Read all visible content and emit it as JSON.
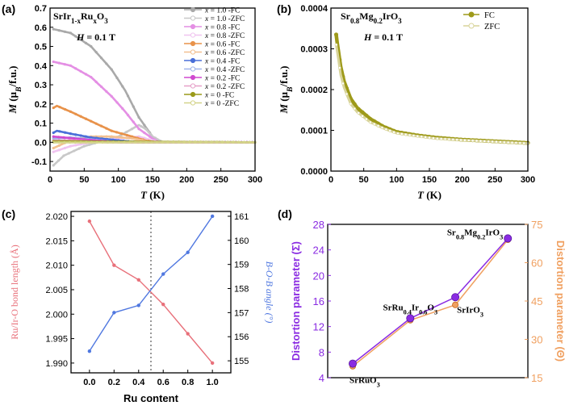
{
  "chart_data": [
    {
      "panel": "(a)",
      "type": "line",
      "title": "SrIr1-xRuxO3",
      "annotation": "H = 0.1 T",
      "xlabel": "T (K)",
      "ylabel": "M (μB/f.u.)",
      "xlim": [
        0,
        300
      ],
      "ylim": [
        -0.15,
        0.7
      ],
      "xticks": [
        "0",
        "50",
        "100",
        "150",
        "200",
        "250",
        "300"
      ],
      "yticks": [
        "-0.1",
        "0.0",
        "0.1",
        "0.2",
        "0.3",
        "0.4",
        "0.5",
        "0.6",
        "0.7"
      ],
      "legend_position": "top-right",
      "legend": [
        "x = 1.0 -FC",
        "x = 1.0 -ZFC",
        "x = 0.8 -FC",
        "x = 0.8 -ZFC",
        "x = 0.6 -FC",
        "x = 0.6 -ZFC",
        "x = 0.4 -FC",
        "x = 0.4 -ZFC",
        "x = 0.2 -FC",
        "x = 0.2 -ZFC",
        "x = 0 -FC",
        "x = 0 -ZFC"
      ],
      "series": [
        {
          "name": "x = 1.0 -FC",
          "color": "#a9a9a9",
          "x": [
            5,
            30,
            60,
            90,
            110,
            130,
            150,
            165,
            300
          ],
          "y": [
            0.59,
            0.57,
            0.5,
            0.38,
            0.27,
            0.13,
            0.03,
            0.0,
            0.0
          ]
        },
        {
          "name": "x = 1.0 -ZFC",
          "color": "#c8c8c8",
          "x": [
            5,
            20,
            50,
            100,
            120,
            130,
            140,
            150,
            165,
            300
          ],
          "y": [
            -0.12,
            -0.07,
            -0.02,
            0.03,
            0.07,
            0.09,
            0.07,
            0.03,
            0.0,
            0.0
          ]
        },
        {
          "name": "x = 0.8 -FC",
          "color": "#e48fe4",
          "x": [
            5,
            30,
            60,
            90,
            110,
            130,
            150,
            160,
            300
          ],
          "y": [
            0.42,
            0.4,
            0.34,
            0.24,
            0.16,
            0.07,
            0.02,
            0.0,
            0.0
          ]
        },
        {
          "name": "x = 0.8 -ZFC",
          "color": "#f0c4f0",
          "x": [
            5,
            30,
            60,
            100,
            130,
            150,
            160,
            300
          ],
          "y": [
            -0.05,
            -0.02,
            0.0,
            0.02,
            0.03,
            0.01,
            0.0,
            0.0
          ]
        },
        {
          "name": "x = 0.6 -FC",
          "color": "#e8924a",
          "x": [
            5,
            10,
            30,
            60,
            90,
            120,
            140,
            155,
            300
          ],
          "y": [
            0.18,
            0.19,
            0.16,
            0.11,
            0.06,
            0.03,
            0.01,
            0.0,
            0.0
          ]
        },
        {
          "name": "x = 0.6 -ZFC",
          "color": "#f2c090",
          "x": [
            5,
            30,
            60,
            90,
            120,
            150,
            300
          ],
          "y": [
            -0.03,
            0.01,
            0.03,
            0.03,
            0.02,
            0.0,
            0.0
          ]
        },
        {
          "name": "x = 0.4 -FC",
          "color": "#4a6fd8",
          "x": [
            5,
            10,
            30,
            60,
            100,
            130,
            300
          ],
          "y": [
            0.05,
            0.06,
            0.045,
            0.025,
            0.01,
            0.0,
            0.0
          ]
        },
        {
          "name": "x = 0.4 -ZFC",
          "color": "#a0b4ea",
          "x": [
            5,
            30,
            60,
            100,
            300
          ],
          "y": [
            0.02,
            0.025,
            0.015,
            0.0,
            0.0
          ]
        },
        {
          "name": "x = 0.2 -FC",
          "color": "#d04ad0",
          "x": [
            5,
            20,
            50,
            100,
            300
          ],
          "y": [
            0.03,
            0.025,
            0.015,
            0.0,
            0.0
          ]
        },
        {
          "name": "x = 0.2 -ZFC",
          "color": "#e6a0c8",
          "x": [
            5,
            30,
            80,
            300
          ],
          "y": [
            0.01,
            0.01,
            0.0,
            0.0
          ]
        },
        {
          "name": "x = 0 -FC",
          "color": "#9a9a1a",
          "x": [
            5,
            300
          ],
          "y": [
            0.005,
            0.0
          ]
        },
        {
          "name": "x = 0 -ZFC",
          "color": "#d4d48a",
          "x": [
            5,
            300
          ],
          "y": [
            0.0,
            0.0
          ]
        }
      ]
    },
    {
      "panel": "(b)",
      "type": "line",
      "title": "Sr0.8Mg0.2IrO3",
      "annotation": "H = 0.1 T",
      "xlabel": "T (K)",
      "ylabel": "M (μB/f.u.)",
      "xlim": [
        0,
        300
      ],
      "ylim": [
        0,
        0.0004
      ],
      "xticks": [
        "0",
        "50",
        "100",
        "150",
        "200",
        "250",
        "300"
      ],
      "yticks": [
        "0.0000",
        "0.0001",
        "0.0002",
        "0.0003",
        "0.0004"
      ],
      "legend_position": "top-right",
      "legend": [
        "FC",
        "ZFC"
      ],
      "series": [
        {
          "name": "FC",
          "color": "#9e9a1a",
          "x": [
            8,
            10,
            15,
            20,
            30,
            40,
            60,
            80,
            100,
            130,
            160,
            200,
            250,
            300
          ],
          "y": [
            0.000335,
            0.00031,
            0.000255,
            0.00022,
            0.000178,
            0.000155,
            0.000128,
            0.000109,
            9.6e-05,
            8.8e-05,
            8.2e-05,
            7.7e-05,
            7.3e-05,
            6.9e-05
          ]
        },
        {
          "name": "ZFC",
          "color": "#d8d49a",
          "x": [
            8,
            10,
            15,
            20,
            30,
            40,
            60,
            80,
            100,
            130,
            160,
            200,
            250,
            300
          ],
          "y": [
            0.00031,
            0.00029,
            0.000235,
            0.000205,
            0.000165,
            0.000145,
            0.00012,
            0.000105,
            9.3e-05,
            8.6e-05,
            8e-05,
            7.6e-05,
            7.2e-05,
            6.8e-05
          ]
        }
      ]
    },
    {
      "panel": "(c)",
      "type": "line",
      "xlabel": "Ru content",
      "ylabel_left": "Ru/Ir-O bond length (Å)",
      "ylabel_right": "B-O-B angle (°)",
      "xlim": [
        -0.15,
        1.15
      ],
      "ylim_left": [
        1.988,
        2.021
      ],
      "ylim_right": [
        154.5,
        161.2
      ],
      "xticks": [
        "0.0",
        "0.2",
        "0.4",
        "0.6",
        "0.8",
        "1.0"
      ],
      "yticks_left": [
        "1.990",
        "1.995",
        "2.000",
        "2.005",
        "2.010",
        "2.015",
        "2.020"
      ],
      "yticks_right": [
        "155",
        "156",
        "157",
        "158",
        "159",
        "160",
        "161"
      ],
      "vline_x": 0.5,
      "series": [
        {
          "name": "bond length",
          "axis": "left",
          "color": "#e8707a",
          "x": [
            0,
            0.2,
            0.4,
            0.6,
            0.8,
            1.0
          ],
          "y": [
            2.019,
            2.01,
            2.007,
            2.002,
            1.996,
            1.99
          ]
        },
        {
          "name": "angle",
          "axis": "right",
          "color": "#5078e0",
          "x": [
            0,
            0.2,
            0.4,
            0.6,
            0.8,
            1.0
          ],
          "y": [
            155.4,
            157.0,
            157.3,
            158.6,
            159.5,
            161.0
          ]
        }
      ]
    },
    {
      "panel": "(d)",
      "type": "line",
      "ylabel_left": "Distortion parameter (Σ)",
      "ylabel_right": "Distortion parameter (Θ)",
      "xlim": [
        0,
        4
      ],
      "ylim_left": [
        4,
        28
      ],
      "ylim_right": [
        15,
        75
      ],
      "yticks_left": [
        "4",
        "8",
        "12",
        "16",
        "20",
        "24",
        "28"
      ],
      "yticks_right": [
        "15",
        "30",
        "45",
        "60",
        "75"
      ],
      "left_color": "#8a2be2",
      "right_color": "#f0a060",
      "point_labels": [
        "SrRuO3",
        "SrRu0.4Ir0.6O3",
        "SrIrO3",
        "Sr0.8Mg0.2IrO3"
      ],
      "x": [
        0.5,
        1.65,
        2.55,
        3.6
      ],
      "series": [
        {
          "name": "Σ",
          "axis": "left",
          "color": "#8a2be2",
          "values": [
            6.2,
            13.3,
            16.6,
            25.8
          ]
        },
        {
          "name": "Θ",
          "axis": "right",
          "color": "#f0a060",
          "values": [
            19.5,
            37.5,
            43.5,
            69.0
          ]
        }
      ]
    }
  ]
}
